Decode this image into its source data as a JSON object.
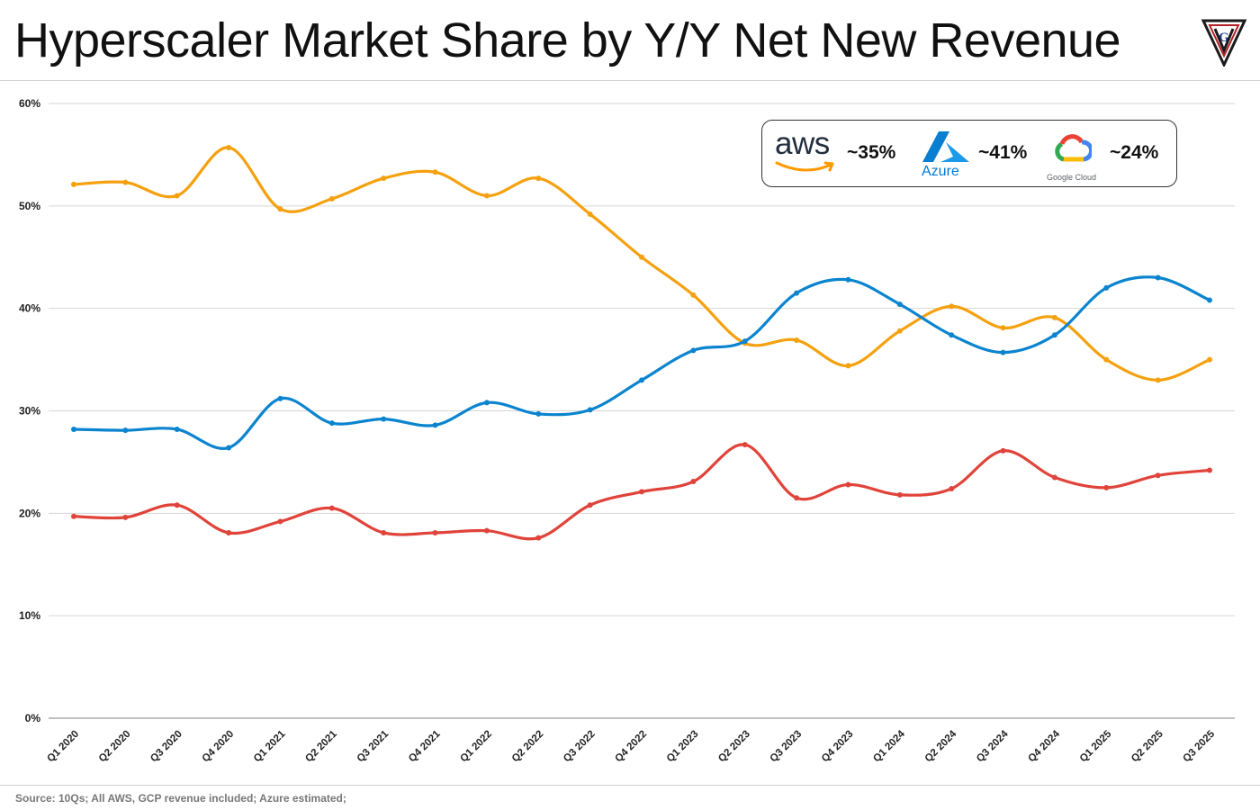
{
  "header": {
    "title": "Hyperscaler Market Share by Y/Y Net New Revenue",
    "logo_letters": "VGV"
  },
  "footer": {
    "source": "Source: 10Qs; All AWS, GCP revenue included; Azure estimated;"
  },
  "legend": {
    "aws": {
      "logo_text": "aws",
      "share": "~35%",
      "color": "#f39c12"
    },
    "azure": {
      "logo_text": "Azure",
      "share": "~41%",
      "color": "#0078d4"
    },
    "gcp": {
      "logo_text": "Google Cloud",
      "share": "~24%",
      "color": "#e53935"
    }
  },
  "chart_data": {
    "type": "line",
    "title": "Hyperscaler Market Share by Y/Y Net New Revenue",
    "xlabel": "",
    "ylabel": "",
    "ylim": [
      0,
      60
    ],
    "yticks": [
      0,
      10,
      20,
      30,
      40,
      50,
      60
    ],
    "ytick_labels": [
      "0%",
      "10%",
      "20%",
      "30%",
      "40%",
      "50%",
      "60%"
    ],
    "grid": true,
    "categories": [
      "Q1 2020",
      "Q2 2020",
      "Q3 2020",
      "Q4 2020",
      "Q1 2021",
      "Q2 2021",
      "Q3 2021",
      "Q4 2021",
      "Q1 2022",
      "Q2 2022",
      "Q3 2022",
      "Q4 2022",
      "Q1 2023",
      "Q2 2023",
      "Q3 2023",
      "Q4 2023",
      "Q1 2024",
      "Q2 2024",
      "Q3 2024",
      "Q4 2024",
      "Q1 2025",
      "Q2 2025",
      "Q3 2025"
    ],
    "series": [
      {
        "name": "AWS",
        "color": "#f5a10f",
        "values": [
          52.1,
          52.3,
          51.0,
          55.7,
          49.7,
          50.7,
          52.7,
          53.3,
          51.0,
          52.7,
          49.2,
          45.0,
          41.3,
          36.6,
          36.9,
          34.4,
          37.8,
          40.2,
          38.1,
          39.1,
          35.0,
          33.0,
          35.0
        ]
      },
      {
        "name": "Azure",
        "color": "#0b84cf",
        "values": [
          28.2,
          28.1,
          28.2,
          26.4,
          31.2,
          28.8,
          29.2,
          28.6,
          30.8,
          29.7,
          30.1,
          33.0,
          35.9,
          36.8,
          41.5,
          42.8,
          40.4,
          37.4,
          35.7,
          37.4,
          42.0,
          43.0,
          40.8
        ]
      },
      {
        "name": "Google Cloud",
        "color": "#e0433a",
        "values": [
          19.7,
          19.6,
          20.8,
          18.1,
          19.2,
          20.5,
          18.1,
          18.1,
          18.3,
          17.6,
          20.8,
          22.1,
          23.1,
          26.7,
          21.5,
          22.8,
          21.8,
          22.4,
          26.1,
          23.5,
          22.5,
          23.7,
          24.2
        ]
      }
    ],
    "legend": "top-right"
  }
}
